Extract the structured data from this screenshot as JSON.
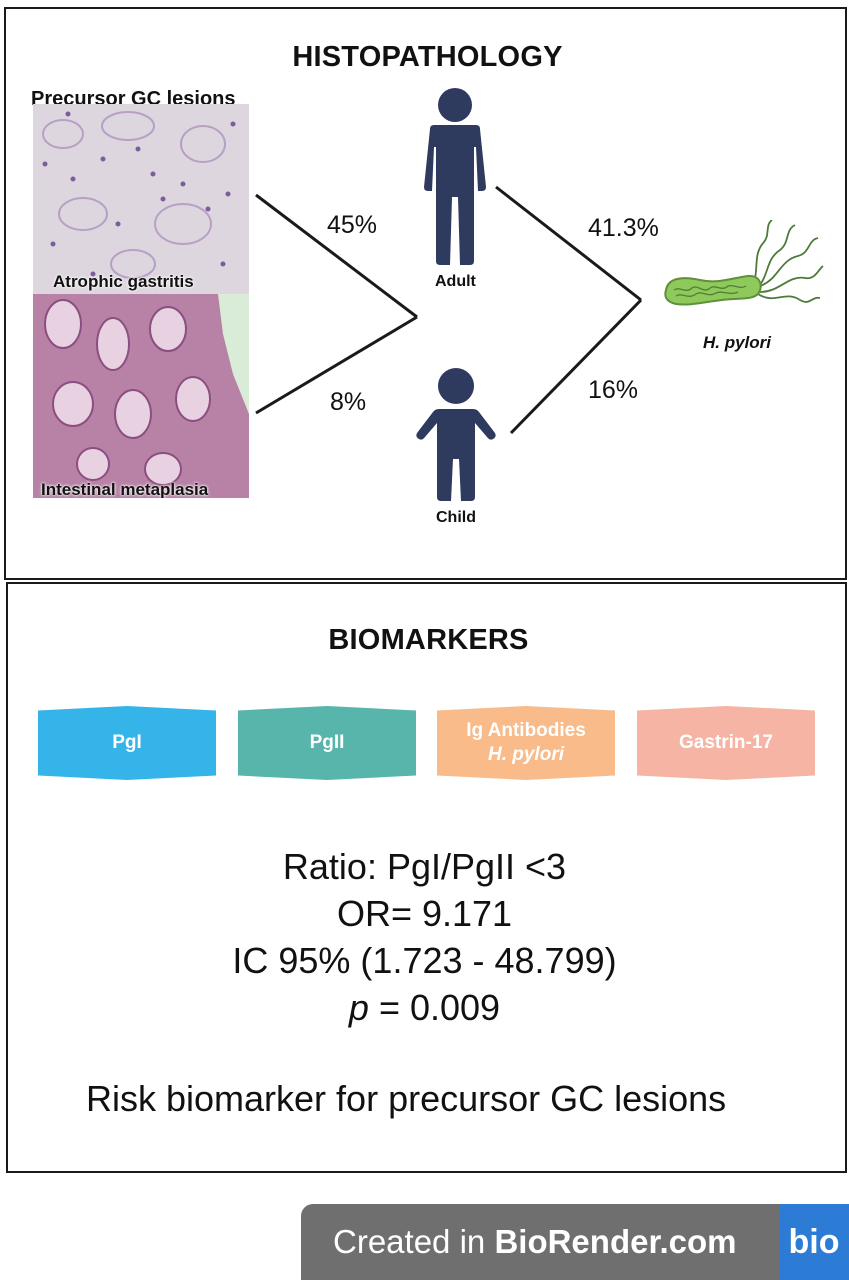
{
  "histopathology": {
    "title": "HISTOPATHOLOGY",
    "lesions_heading": "Precursor GC  lesions",
    "atrophic_label": "Atrophic gastritis",
    "intestinal_label": "Intestinal metaplasia",
    "adult_label": "Adult",
    "child_label": "Child",
    "pathogen_label": "H. pylori",
    "adult_lesion_pct": "45%",
    "child_lesion_pct": "8%",
    "adult_hpylori_pct": "41.3%",
    "child_hpylori_pct": "16%"
  },
  "biomarkers": {
    "title": "BIOMARKERS",
    "chips": [
      {
        "line1": "PgI",
        "line2": "",
        "color": "#35b4ea"
      },
      {
        "line1": "PgII",
        "line2": "",
        "color": "#58b5ac"
      },
      {
        "line1": "Ig Antibodies",
        "line2": "H. pylori",
        "color": "#f8bb89"
      },
      {
        "line1": "Gastrin-17",
        "line2": "",
        "color": "#f5b4a4"
      }
    ],
    "ratio": "Ratio: PgI/PgII <3",
    "odds_ratio": "OR= 9.171",
    "ci": "IC 95% (1.723 - 48.799)",
    "p_symbol": "p",
    "p_rest": " = 0.009",
    "conclusion": "Risk biomarker for precursor GC lesions"
  },
  "footer": {
    "prefix": "Created in ",
    "brand": "BioRender.com",
    "logo": "bio"
  },
  "colors": {
    "figure_navy": "#2f3a5f",
    "bacterium_green": "#8fc95b"
  }
}
